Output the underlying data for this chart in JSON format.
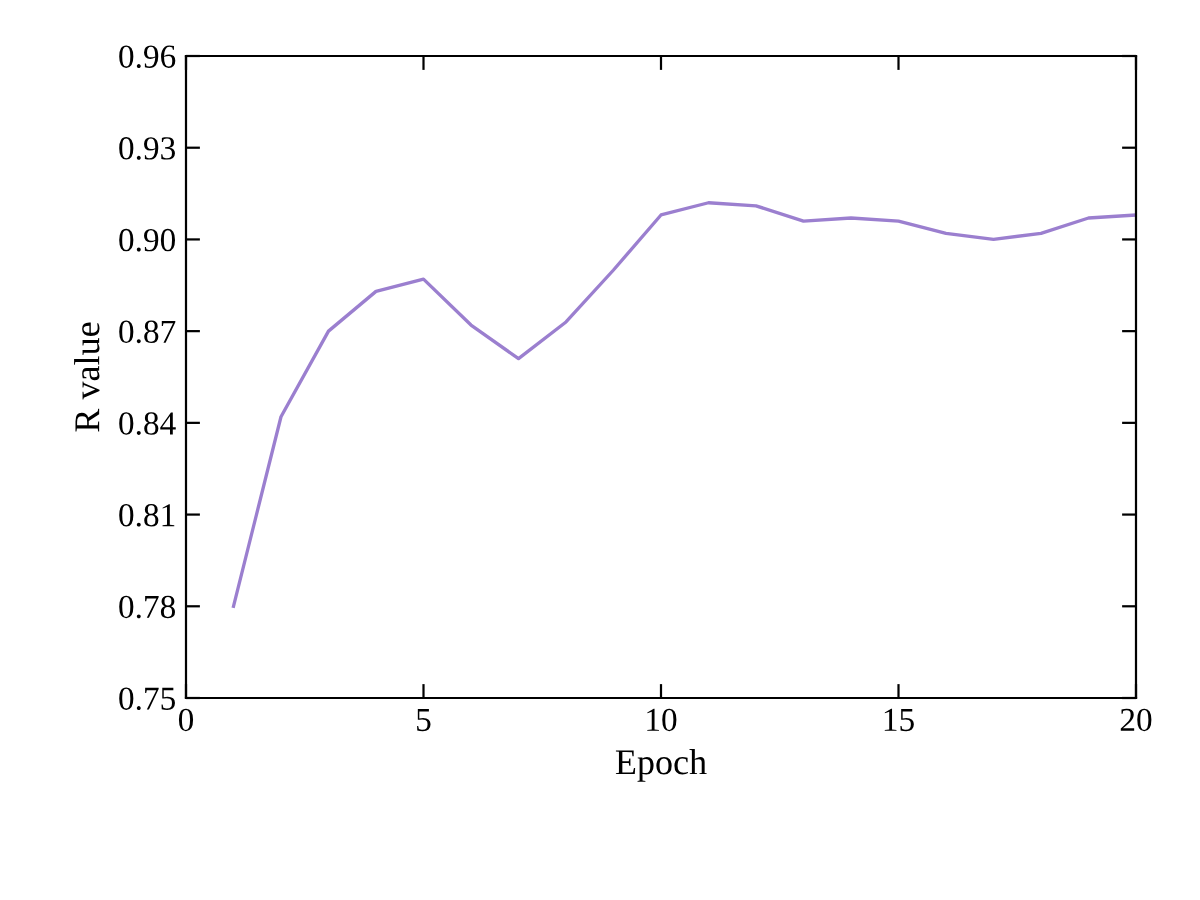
{
  "chart_data": {
    "type": "line",
    "xlabel": "Epoch",
    "ylabel": "R value",
    "x": [
      1,
      2,
      3,
      4,
      5,
      6,
      7,
      8,
      9,
      10,
      11,
      12,
      13,
      14,
      15,
      16,
      17,
      18,
      19,
      20
    ],
    "series": [
      {
        "color": "#9b7fcf",
        "values": [
          0.78,
          0.842,
          0.87,
          0.883,
          0.887,
          0.872,
          0.861,
          0.873,
          0.89,
          0.908,
          0.912,
          0.911,
          0.906,
          0.907,
          0.906,
          0.902,
          0.9,
          0.902,
          0.907,
          0.908
        ]
      }
    ],
    "xlim": [
      0,
      20
    ],
    "xticks": [
      0,
      5,
      10,
      15,
      20
    ],
    "ylim": [
      0.75,
      0.96
    ],
    "yticks": [
      {
        "value": 0.75,
        "label": "0.75"
      },
      {
        "value": 0.78,
        "label": "0.78"
      },
      {
        "value": 0.81,
        "label": "0.81"
      },
      {
        "value": 0.84,
        "label": "0.84"
      },
      {
        "value": 0.87,
        "label": "0.87"
      },
      {
        "value": 0.9,
        "label": "0.90"
      },
      {
        "value": 0.93,
        "label": "0.93"
      },
      {
        "value": 0.96,
        "label": "0.96"
      }
    ],
    "grid": false,
    "legend": false
  }
}
